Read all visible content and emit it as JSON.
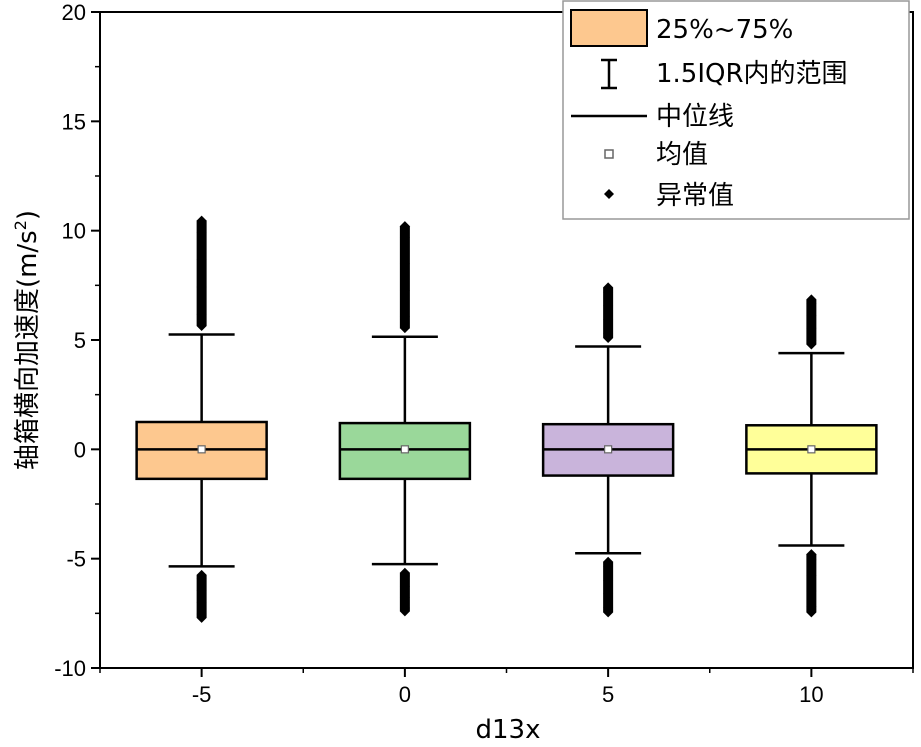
{
  "chart_data": {
    "type": "box",
    "xlabel": "d13x",
    "ylabel_main": "轴箱横向加速度(m/s",
    "ylabel_sup": "2",
    "ylabel_close": ")",
    "ylim": [
      -10,
      20
    ],
    "yticks": [
      "-10",
      "-5",
      "0",
      "5",
      "10",
      "15",
      "20"
    ],
    "categories": [
      "-5",
      "0",
      "5",
      "10"
    ],
    "boxes": [
      {
        "category": "-5",
        "color": "#FDC88F",
        "q1": -1.35,
        "median": 0.0,
        "q3": 1.25,
        "mean": 0.0,
        "whisker_low": -5.35,
        "whisker_high": 5.25,
        "outlier_low_min": -7.8,
        "outlier_high_max": 10.55
      },
      {
        "category": "0",
        "color": "#9AD89A",
        "q1": -1.35,
        "median": 0.0,
        "q3": 1.2,
        "mean": 0.0,
        "whisker_low": -5.25,
        "whisker_high": 5.15,
        "outlier_low_min": -7.5,
        "outlier_high_max": 10.3
      },
      {
        "category": "5",
        "color": "#C9B4DB",
        "q1": -1.2,
        "median": 0.0,
        "q3": 1.15,
        "mean": 0.0,
        "whisker_low": -4.75,
        "whisker_high": 4.7,
        "outlier_low_min": -7.55,
        "outlier_high_max": 7.5
      },
      {
        "category": "10",
        "color": "#FFFF99",
        "q1": -1.1,
        "median": 0.0,
        "q3": 1.1,
        "mean": 0.0,
        "whisker_low": -4.4,
        "whisker_high": 4.4,
        "outlier_low_min": -7.55,
        "outlier_high_max": 6.95
      }
    ],
    "legend": {
      "position": "top-right",
      "box_label": "25%~75%",
      "box_color": "#FDC88F",
      "whisker_label": "1.5IQR内的范围",
      "median_label": "中位线",
      "mean_label": "均值",
      "outlier_label": "异常值"
    }
  }
}
